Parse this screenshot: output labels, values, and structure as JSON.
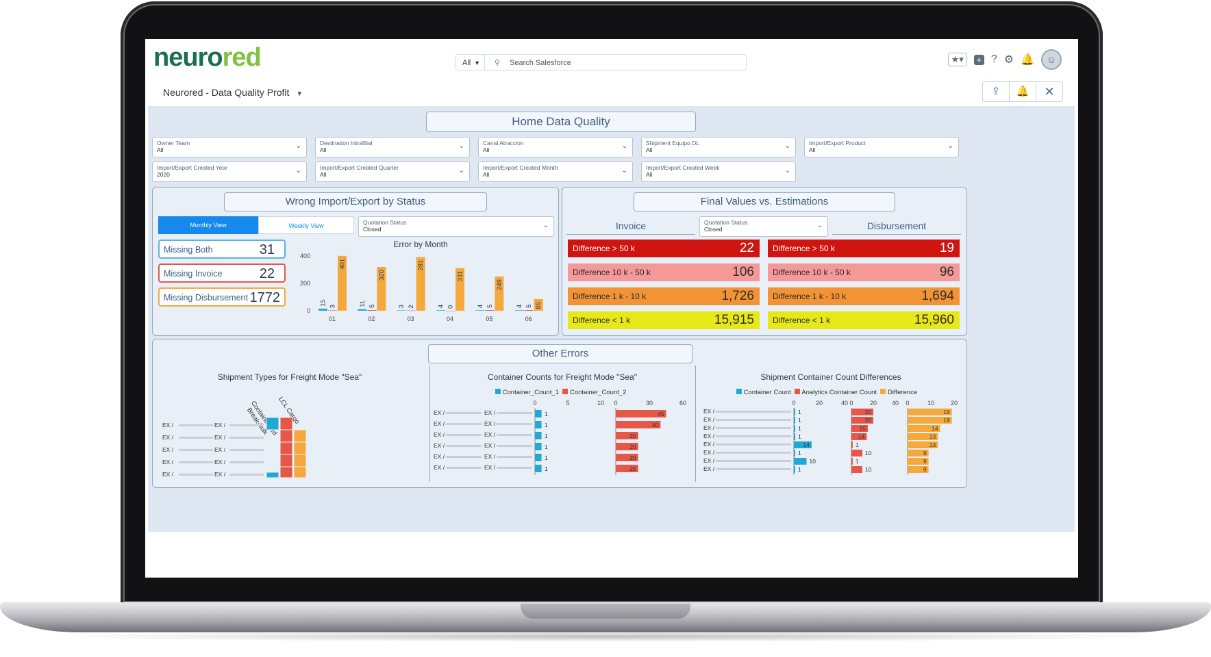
{
  "app": {
    "logo_part1": "neuro",
    "logo_part2": "red",
    "search_scope": "All",
    "search_placeholder": "Search Salesforce",
    "dashboard_name": "Neurored - Data Quality Profit"
  },
  "dashboard": {
    "title": "Home Data Quality",
    "filters": [
      {
        "label": "Owner Team",
        "value": "All"
      },
      {
        "label": "Destination Intrafilial",
        "value": "All"
      },
      {
        "label": "Canal Atraccion",
        "value": "All"
      },
      {
        "label": "Shipment Equipo DL",
        "value": "All"
      },
      {
        "label": "Import/Export Product",
        "value": "All"
      },
      {
        "label": "Import/Export Created Year",
        "value": "2020"
      },
      {
        "label": "Import/Export Created Quarter",
        "value": "All"
      },
      {
        "label": "Import/Export Created Month",
        "value": "All"
      },
      {
        "label": "Import/Export Created Week",
        "value": "All"
      }
    ],
    "wrong": {
      "title": "Wrong Import/Export by Status",
      "toggle_monthly": "Monthly View",
      "toggle_weekly": "Weekly View",
      "status_label": "Quotation Status",
      "status_value": "Closed",
      "kpis": [
        {
          "label": "Missing Both",
          "value": "31",
          "color": "#5ab5dc"
        },
        {
          "label": "Missing Invoice",
          "value": "22",
          "color": "#e6574a"
        },
        {
          "label": "Missing Disbursement",
          "value": "1772",
          "color": "#f5a93c"
        }
      ]
    },
    "final": {
      "title": "Final Values vs. Estimations",
      "invoice_header": "Invoice",
      "disbursement_header": "Disbursement",
      "status_label": "Quotation Status",
      "status_value": "Closed",
      "rows": [
        {
          "label": "Difference > 50 k",
          "invoice": "22",
          "disbursement": "19",
          "color": "#d0140f",
          "text": "#ffffff"
        },
        {
          "label": "Difference 10 k - 50 k",
          "invoice": "106",
          "disbursement": "96",
          "color": "#f49898",
          "text": "#2b2b2b"
        },
        {
          "label": "Difference 1 k - 10 k",
          "invoice": "1,726",
          "disbursement": "1,694",
          "color": "#f29436",
          "text": "#2b2b2b"
        },
        {
          "label": "Difference < 1 k",
          "invoice": "15,915",
          "disbursement": "15,960",
          "color": "#e8e818",
          "text": "#2b2b2b"
        }
      ]
    },
    "other": {
      "title": "Other Errors",
      "types_title": "Shipment Types for Freight Mode \"Sea\"",
      "type_col1": "Containerised",
      "type_col2": "LCL Cargo",
      "type_col3": "Break-bulk",
      "counts_title": "Container Counts for Freight Mode \"Sea\"",
      "counts_legend1": "Container_Count_1",
      "counts_legend2": "Container_Count_2",
      "diff_title": "Shipment Container Count Differences",
      "diff_legend1": "Container Count",
      "diff_legend2": "Analytics Container Count",
      "diff_legend3": "Difference"
    }
  },
  "chart_data": [
    {
      "type": "bar",
      "title": "Error by Month",
      "categories": [
        "01",
        "02",
        "03",
        "04",
        "05",
        "06"
      ],
      "series": [
        {
          "color": "#21a9d6",
          "values": [
            15,
            11,
            3,
            4,
            4,
            4
          ]
        },
        {
          "color": "#e6574a",
          "values": [
            3,
            5,
            2,
            0,
            5,
            5
          ]
        },
        {
          "color": "#f5a93c",
          "values": [
            401,
            320,
            391,
            311,
            249,
            85
          ]
        }
      ],
      "ylim": [
        0,
        400
      ],
      "yticks": [
        0,
        200,
        400
      ]
    },
    {
      "type": "bar",
      "title": "Container Counts for Freight Mode \"Sea\"",
      "categories": [
        "EX /",
        "EX /",
        "EX /",
        "EX /",
        "EX /",
        "EX /"
      ],
      "series": [
        {
          "name": "Container_Count_1",
          "color": "#21a9d6",
          "values": [
            1,
            1,
            1,
            1,
            1,
            1
          ],
          "xlim": [
            0,
            10
          ],
          "ticks": [
            0,
            5,
            10
          ]
        },
        {
          "name": "Container_Count_2",
          "color": "#e6574a",
          "values": [
            45,
            40,
            20,
            20,
            20,
            20
          ],
          "xlim": [
            0,
            60
          ],
          "ticks": [
            0,
            30,
            60
          ]
        }
      ]
    },
    {
      "type": "bar",
      "title": "Shipment Container Count Differences",
      "categories": [
        "EX /",
        "EX /",
        "EX /",
        "EX /",
        "EX /",
        "EX /",
        "EX /",
        "EX /"
      ],
      "series": [
        {
          "name": "Container Count",
          "color": "#21a9d6",
          "values": [
            1,
            1,
            1,
            1,
            14,
            1,
            10,
            1
          ],
          "xlim": [
            0,
            40
          ],
          "ticks": [
            0,
            20,
            40
          ]
        },
        {
          "name": "Analytics Container Count",
          "color": "#e6574a",
          "values": [
            20,
            20,
            15,
            14,
            1,
            10,
            1,
            10
          ],
          "xlim": [
            0,
            40
          ],
          "ticks": [
            0,
            20,
            40
          ]
        },
        {
          "name": "Difference",
          "color": "#f5a93c",
          "values": [
            19,
            19,
            14,
            13,
            13,
            9,
            9,
            9
          ],
          "xlim": [
            0,
            20
          ],
          "ticks": [
            0,
            10,
            20
          ]
        }
      ]
    }
  ]
}
